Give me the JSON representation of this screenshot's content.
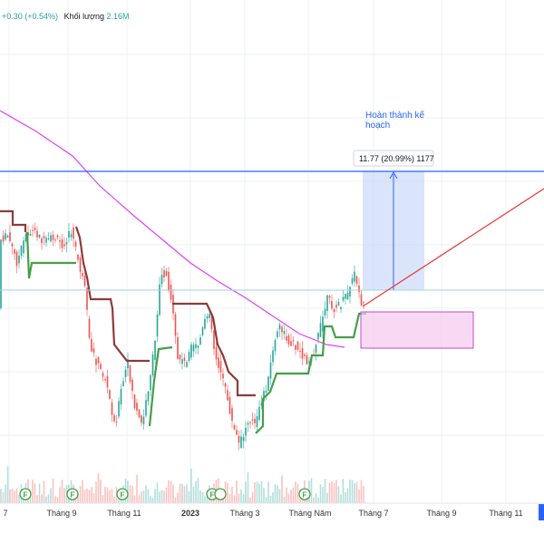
{
  "header": {
    "change": "+0.30 (+0.54%)",
    "volume_label": "Khối lượng",
    "volume_value": "2.16M"
  },
  "chart_data": {
    "type": "line",
    "x_ticks": [
      "7",
      "Tháng 9",
      "Tháng 11",
      "2023",
      "Tháng 3",
      "Tháng Năm",
      "Tháng 7",
      "Tháng 9",
      "Tháng 11"
    ],
    "bold_tick": "2023",
    "annotations": {
      "note": "Hoàn thành kế hoạch",
      "measure": "11.77 (20.99%) 1177"
    },
    "event_markers": [
      "F",
      "F",
      "F",
      "F",
      "F"
    ],
    "colors": {
      "up_candle": "#26a69a",
      "down_candle": "#ef5350",
      "moving_average": "#e040fb",
      "stop_down": "#8d3b3b",
      "stop_up": "#43a047",
      "target_line": "#2962ff",
      "trend_line": "#e53935",
      "target_box": "#bcd0f7",
      "range_box": "#f3c9ef"
    }
  }
}
